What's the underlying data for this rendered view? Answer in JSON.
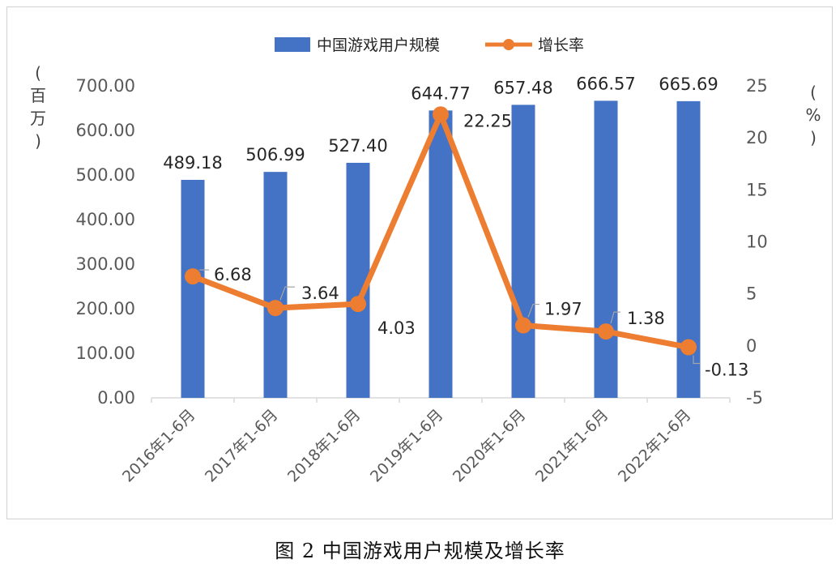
{
  "caption": "图 2 中国游戏用户规模及增长率",
  "units": {
    "left": [
      "(",
      "百",
      "万",
      ")"
    ],
    "right": [
      "(",
      "%",
      ")"
    ]
  },
  "colors": {
    "bar": "#4472C4",
    "line": "#ED7D31",
    "axis": "#d9d9d9",
    "leader": "#a6a6a6"
  },
  "chart_data": {
    "type": "bar",
    "categories": [
      "2016年1-6月",
      "2017年1-6月",
      "2018年1-6月",
      "2019年1-6月",
      "2020年1-6月",
      "2021年1-6月",
      "2022年1-6月"
    ],
    "series": [
      {
        "name": "中国游戏用户规模",
        "type": "bar",
        "axis": "left",
        "values": [
          489.18,
          506.99,
          527.4,
          644.77,
          657.48,
          666.57,
          665.69
        ],
        "labels": [
          "489.18",
          "506.99",
          "527.40",
          "644.77",
          "657.48",
          "666.57",
          "665.69"
        ]
      },
      {
        "name": "增长率",
        "type": "line",
        "axis": "right",
        "values": [
          6.68,
          3.64,
          4.03,
          22.25,
          1.97,
          1.38,
          -0.13
        ],
        "labels": [
          "6.68",
          "3.64",
          "4.03",
          "22.25",
          "1.97",
          "1.38",
          "-0.13"
        ]
      }
    ],
    "y_left": {
      "min": 0,
      "max": 700,
      "step": 100,
      "tick_labels": [
        "0.00",
        "100.00",
        "200.00",
        "300.00",
        "400.00",
        "500.00",
        "600.00",
        "700.00"
      ]
    },
    "y_right": {
      "min": -5,
      "max": 25,
      "step": 5,
      "tick_labels": [
        "-5",
        "0",
        "5",
        "10",
        "15",
        "20",
        "25"
      ]
    },
    "grid": false,
    "legend_position": "top-center"
  }
}
